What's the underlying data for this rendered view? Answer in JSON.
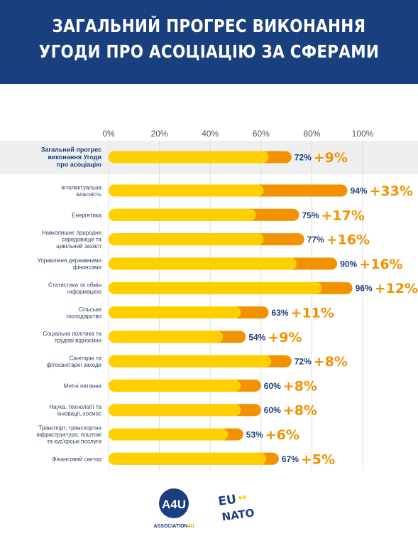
{
  "header": {
    "title_line1": "ЗАГАЛЬНИЙ ПРОГРЕС ВИКОНАННЯ",
    "title_line2": "УГОДИ ПРО АСОЦІАЦІЮ ЗА СФЕРАМИ"
  },
  "colors": {
    "header_bg": "#1a3f7e",
    "bar_base": "#ffd000",
    "bar_increase": "#f39200",
    "total_row_bg": "#efefef",
    "value_text": "#1a3f7e",
    "increase_text": "#f39200"
  },
  "chart_data": {
    "type": "bar",
    "orientation": "horizontal",
    "stacked": true,
    "xlim": [
      0,
      100
    ],
    "x_ticks": [
      "0%",
      "20%",
      "40%",
      "60%",
      "80%",
      "100%"
    ],
    "grid": true,
    "categories": [
      "Загальний прогрес виконання Угоди про асоціацію",
      "Інтелектуальна власність",
      "Енергетика",
      "Навколишнє природне середовище та цивільний захист",
      "Управління державними фінансами",
      "Статистика та обмін інформацією",
      "Сільське господарство",
      "Соціальна політика та трудові відносини",
      "Санітарні та фітосанітарні заходи",
      "Митні питання",
      "Наука, технології та інновації, космос",
      "Транспорт, транспортна інфраструктура, поштові та кур'єрські послуги",
      "Фінансовий сектор"
    ],
    "label_lines": [
      [
        "Загальний прогрес",
        "виконання Угоди",
        "про асоціацію"
      ],
      [
        "Інтелектуальна",
        "власність"
      ],
      [
        "Енергетика"
      ],
      [
        "Навколишнє природне",
        "середовище та",
        "цивільний захист"
      ],
      [
        "Управління державними",
        "фінансами"
      ],
      [
        "Статистика та обмін",
        "інформацією"
      ],
      [
        "Сільське",
        "господарство"
      ],
      [
        "Соціальна політика та",
        "трудові відносини"
      ],
      [
        "Санітарні та",
        "фітосанітарні заходи"
      ],
      [
        "Митні питання"
      ],
      [
        "Наука, технології та",
        "інновації, космос"
      ],
      [
        "Транспорт, транспортна",
        "інфраструктура, поштові",
        "та кур'єрські послуги"
      ],
      [
        "Фінансовий сектор"
      ]
    ],
    "totals": [
      72,
      94,
      75,
      77,
      90,
      96,
      63,
      54,
      72,
      60,
      60,
      53,
      67
    ],
    "increases": [
      9,
      33,
      17,
      16,
      16,
      12,
      11,
      9,
      8,
      8,
      8,
      6,
      5
    ],
    "value_labels": [
      "72%",
      "94%",
      "75%",
      "77%",
      "90%",
      "96%",
      "63%",
      "54%",
      "72%",
      "60%",
      "60%",
      "53%",
      "67%"
    ],
    "increase_labels": [
      "+9%",
      "+33%",
      "+17%",
      "+16%",
      "+16%",
      "+12%",
      "+11%",
      "+9%",
      "+8%",
      "+8%",
      "+8%",
      "+6%",
      "+5%"
    ]
  },
  "logos": {
    "a4u_mark": "A4U",
    "a4u_caption_main": "ASSOCIATION",
    "a4u_caption_suffix": "4U",
    "eu_nato_top": "EU",
    "eu_nato_arrow": "↔",
    "eu_nato_bottom": "NATO"
  }
}
